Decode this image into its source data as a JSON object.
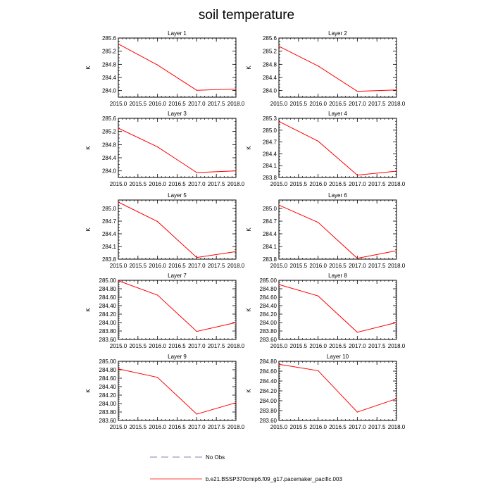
{
  "title": "soil temperature",
  "chart_data": {
    "type": "line",
    "x": [
      2015.0,
      2016.0,
      2017.0,
      2018.0
    ],
    "xlim": [
      2015.0,
      2018.0
    ],
    "xticks": [
      "2015.0",
      "2015.5",
      "2016.0",
      "2016.5",
      "2017.0",
      "2017.5",
      "2018.0"
    ],
    "ylabel": "K",
    "line_color": "#ff0000",
    "panels": [
      {
        "title": "Layer 1",
        "ylim": [
          283.8,
          285.6
        ],
        "yticks": [
          "284.0",
          "284.4",
          "284.8",
          "285.2",
          "285.6"
        ],
        "values": [
          285.42,
          284.78,
          284.01,
          284.05
        ]
      },
      {
        "title": "Layer 2",
        "ylim": [
          283.8,
          285.6
        ],
        "yticks": [
          "284.0",
          "284.4",
          "284.8",
          "285.2",
          "285.6"
        ],
        "values": [
          285.35,
          284.75,
          283.98,
          284.02
        ]
      },
      {
        "title": "Layer 3",
        "ylim": [
          283.8,
          285.6
        ],
        "yticks": [
          "284.0",
          "284.4",
          "284.8",
          "285.2",
          "285.6"
        ],
        "values": [
          285.3,
          284.73,
          283.95,
          284.0
        ]
      },
      {
        "title": "Layer 4",
        "ylim": [
          283.8,
          285.3
        ],
        "yticks": [
          "283.8",
          "284.1",
          "284.4",
          "284.7",
          "285.0",
          "285.3"
        ],
        "values": [
          285.22,
          284.72,
          283.86,
          283.96
        ]
      },
      {
        "title": "Layer 5",
        "ylim": [
          283.8,
          285.2
        ],
        "yticks": [
          "283.8",
          "284.1",
          "284.4",
          "284.7",
          "285.0"
        ],
        "values": [
          285.15,
          284.69,
          283.84,
          283.98
        ]
      },
      {
        "title": "Layer 6",
        "ylim": [
          283.8,
          285.2
        ],
        "yticks": [
          "283.8",
          "284.1",
          "284.4",
          "284.7",
          "285.0"
        ],
        "values": [
          285.08,
          284.67,
          283.82,
          284.0
        ]
      },
      {
        "title": "Layer 7",
        "ylim": [
          283.6,
          285.0
        ],
        "yticks": [
          "283.60",
          "283.80",
          "284.00",
          "284.20",
          "284.40",
          "284.60",
          "284.80",
          "285.00"
        ],
        "values": [
          284.99,
          284.65,
          283.79,
          284.0
        ]
      },
      {
        "title": "Layer 8",
        "ylim": [
          283.6,
          285.0
        ],
        "yticks": [
          "283.60",
          "283.80",
          "284.00",
          "284.20",
          "284.40",
          "284.60",
          "284.80",
          "285.00"
        ],
        "values": [
          284.9,
          284.63,
          283.77,
          284.0
        ]
      },
      {
        "title": "Layer 9",
        "ylim": [
          283.6,
          285.0
        ],
        "yticks": [
          "283.60",
          "283.80",
          "284.00",
          "284.20",
          "284.40",
          "284.60",
          "284.80",
          "285.00"
        ],
        "values": [
          284.82,
          284.62,
          283.75,
          284.02
        ]
      },
      {
        "title": "Layer 10",
        "ylim": [
          283.6,
          284.8
        ],
        "yticks": [
          "283.60",
          "283.80",
          "284.00",
          "284.20",
          "284.40",
          "284.60",
          "284.80"
        ],
        "values": [
          284.74,
          284.61,
          283.77,
          284.04
        ]
      }
    ],
    "legend": [
      {
        "label": "No Obs",
        "style": "dashed",
        "color": "#5a5aa0"
      },
      {
        "label": "b.e21.BSSP370cmip6.f09_g17.pacemaker_pacific.003",
        "style": "solid",
        "color": "#ff0000"
      }
    ]
  }
}
